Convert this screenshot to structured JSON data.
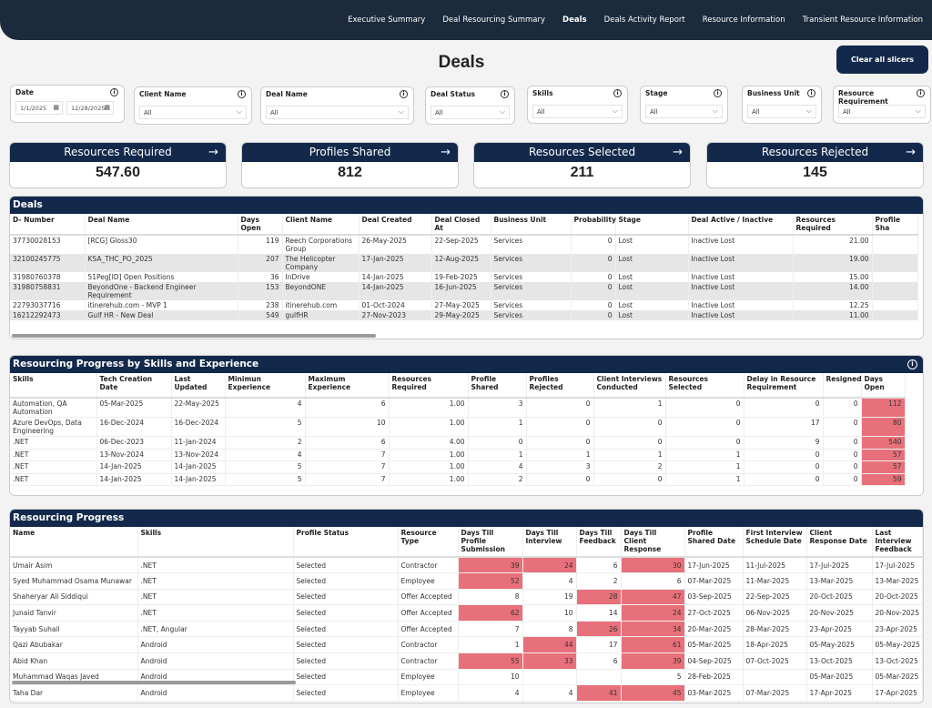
{
  "nav": [
    "Executive Summary",
    "Deal Resourcing Summary",
    "Deals",
    "Deals Activity Report",
    "Resource Information",
    "Transient Resource Information"
  ],
  "nav_active": 2,
  "page_title": "Deals",
  "clear_label": "Clear all slicers",
  "filters": {
    "date": {
      "label": "Date",
      "from": "1/1/2025",
      "to": "12/28/2025"
    },
    "dropdowns": [
      {
        "label": "Client Name",
        "value": "All"
      },
      {
        "label": "Deal Name",
        "value": "All"
      },
      {
        "label": "Deal Status",
        "value": "All"
      },
      {
        "label": "Skills",
        "value": "All"
      },
      {
        "label": "Stage",
        "value": "All"
      },
      {
        "label": "Business Unit",
        "value": "All"
      },
      {
        "label": "Resource Requirement",
        "value": "All"
      }
    ]
  },
  "kpis": [
    {
      "label": "Resources Required",
      "value": "547.60"
    },
    {
      "label": "Profiles Shared",
      "value": "812"
    },
    {
      "label": "Resources Selected",
      "value": "211"
    },
    {
      "label": "Resources Rejected",
      "value": "145"
    }
  ],
  "deals": {
    "title": "Deals",
    "columns": [
      "D- Number",
      "Deal Name",
      "Days Open",
      "Client Name",
      "Deal Created",
      "Deal Closed At",
      "Business Unit",
      "Probability",
      "Stage",
      "Deal Active / Inactive",
      "Resources Required",
      "Profile Sha"
    ],
    "rows": [
      [
        "37730028153",
        "[RCG] Gloss30",
        "119",
        "Reech Corporations Group",
        "26-May-2025",
        "22-Sep-2025",
        "Services",
        "0",
        "Lost",
        "Inactive Lost",
        "21.00",
        ""
      ],
      [
        "32100245775",
        "KSA_THC_PO_2025",
        "207",
        "The Helicopter Company",
        "17-Jan-2025",
        "12-Aug-2025",
        "Services",
        "0",
        "Lost",
        "Inactive Lost",
        "19.00",
        ""
      ],
      [
        "31980760378",
        "51Peg[ID] Open Positions",
        "36",
        "InDrive",
        "14-Jan-2025",
        "19-Feb-2025",
        "Services",
        "0",
        "Lost",
        "Inactive Lost",
        "15.00",
        ""
      ],
      [
        "31980758831",
        "BeyondOne - Backend Engineer Requirement",
        "153",
        "BeyondONE",
        "14-Jan-2025",
        "16-Jun-2025",
        "Services",
        "0",
        "Lost",
        "Inactive Lost",
        "14.00",
        ""
      ],
      [
        "22793037716",
        "itinerehub.com - MVP 1",
        "238",
        "itinerehub.com",
        "01-Oct-2024",
        "27-May-2025",
        "Services",
        "0",
        "Lost",
        "Inactive Lost",
        "12.25",
        ""
      ],
      [
        "16212292473",
        "Gulf HR - New Deal",
        "549",
        "gulfHR",
        "27-Nov-2023",
        "29-May-2025",
        "Services",
        "0",
        "Lost",
        "Inactive Lost",
        "11.00",
        ""
      ]
    ]
  },
  "skills_progress": {
    "title": "Resourcing Progress by Skills and Experience",
    "columns": [
      "Skills",
      "Tech Creation Date",
      "Last Updated",
      "Minimun Experience",
      "Maximum Experience",
      "Resources Required",
      "Profile Shared",
      "Profiles Rejected",
      "Client Interviews Conducted",
      "Resources Selected",
      "Delay in Resource Requirement",
      "Resigned",
      "Days Open"
    ],
    "rows": [
      [
        "Automation, QA Automation",
        "05-Mar-2025",
        "22-May-2025",
        "4",
        "6",
        "1.00",
        "3",
        "0",
        "1",
        "0",
        "0",
        "0",
        "112"
      ],
      [
        "Azure DevOps, Data Engineering",
        "16-Dec-2024",
        "16-Dec-2024",
        "5",
        "10",
        "1.00",
        "1",
        "0",
        "0",
        "0",
        "17",
        "0",
        "80"
      ],
      [
        ".NET",
        "06-Dec-2023",
        "11-Jan-2024",
        "2",
        "6",
        "4.00",
        "0",
        "0",
        "0",
        "0",
        "9",
        "0",
        "540"
      ],
      [
        ".NET",
        "13-Nov-2024",
        "13-Nov-2024",
        "4",
        "7",
        "1.00",
        "1",
        "1",
        "1",
        "1",
        "0",
        "0",
        "57"
      ],
      [
        ".NET",
        "14-Jan-2025",
        "14-Jan-2025",
        "5",
        "7",
        "1.00",
        "4",
        "3",
        "2",
        "1",
        "0",
        "0",
        "57"
      ],
      [
        ".NET",
        "14-Jan-2025",
        "14-Jan-2025",
        "5",
        "7",
        "1.00",
        "2",
        "0",
        "0",
        "1",
        "0",
        "0",
        "59"
      ]
    ]
  },
  "progress": {
    "title": "Resourcing Progress",
    "columns": [
      "Name",
      "Skills",
      "Profile Status",
      "Resource Type",
      "Days Till Profile Submission",
      "Days Till Interview",
      "Days Till Feedback",
      "Days Till Client Response",
      "Profile Shared Date",
      "First Interview Schedule Date",
      "Client Response Date",
      "Last Interview Feedback"
    ],
    "rows": [
      [
        "Umair Asim",
        ".NET",
        "Selected",
        "Contractor",
        "39",
        "24",
        "6",
        "30",
        "17-Jun-2025",
        "11-Jul-2025",
        "17-Jul-2025",
        "17-Jul-2025"
      ],
      [
        "Syed Muhammad Osama Munawar",
        ".NET",
        "Selected",
        "Employee",
        "52",
        "4",
        "2",
        "6",
        "07-Mar-2025",
        "11-Mar-2025",
        "13-Mar-2025",
        "13-Mar-2025"
      ],
      [
        "Shaheryar Ali Siddiqui",
        ".NET",
        "Selected",
        "Offer Accepted",
        "8",
        "19",
        "28",
        "47",
        "03-Sep-2025",
        "22-Sep-2025",
        "20-Oct-2025",
        "20-Oct-2025"
      ],
      [
        "Junaid Tanvir",
        ".NET",
        "Selected",
        "Offer Accepted",
        "62",
        "10",
        "14",
        "24",
        "27-Oct-2025",
        "06-Nov-2025",
        "20-Nov-2025",
        "20-Nov-2025"
      ],
      [
        "Tayyab Suhail",
        ".NET, Angular",
        "Selected",
        "Offer Accepted",
        "7",
        "8",
        "26",
        "34",
        "20-Mar-2025",
        "28-Mar-2025",
        "23-Apr-2025",
        "23-Apr-2025"
      ],
      [
        "Qazi Abubakar",
        "Android",
        "Selected",
        "Contractor",
        "1",
        "44",
        "17",
        "61",
        "05-Mar-2025",
        "18-Apr-2025",
        "05-May-2025",
        "05-May-2025"
      ],
      [
        "Abid Khan",
        "Android",
        "Selected",
        "Contractor",
        "55",
        "33",
        "6",
        "39",
        "04-Sep-2025",
        "07-Oct-2025",
        "13-Oct-2025",
        "13-Oct-2025"
      ],
      [
        "Muhammad Waqas Javed",
        "Android",
        "Selected",
        "Employee",
        "10",
        "",
        "",
        "5",
        "28-Feb-2025",
        "",
        "05-Mar-2025",
        "05-Mar-2025"
      ],
      [
        "Taha Dar",
        "Android",
        "Selected",
        "Employee",
        "4",
        "4",
        "41",
        "45",
        "03-Mar-2025",
        "07-Mar-2025",
        "17-Apr-2025",
        "17-Apr-2025"
      ]
    ],
    "highlight": [
      [
        4,
        5,
        7
      ],
      [
        4
      ],
      [
        6,
        7
      ],
      [
        4,
        7
      ],
      [
        6,
        7
      ],
      [
        5,
        7
      ],
      [
        4,
        5,
        7
      ],
      [],
      [
        6,
        7
      ]
    ]
  },
  "colors": {
    "header": "#13294b",
    "highlight": "#e8707a"
  }
}
